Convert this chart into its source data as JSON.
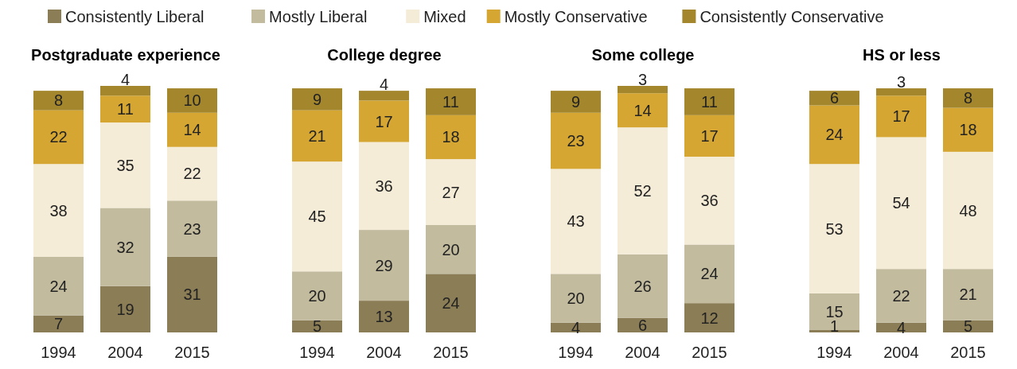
{
  "chart_data": [
    {
      "type": "bar",
      "stacked": true,
      "title": "Postgraduate experience",
      "categories": [
        "1994",
        "2004",
        "2015"
      ],
      "data_labels": true,
      "legend": "top",
      "series": [
        {
          "name": "Consistently Liberal",
          "color": "#8b7d55",
          "values": [
            7,
            19,
            31
          ]
        },
        {
          "name": "Mostly Liberal",
          "color": "#c2bb9e",
          "values": [
            24,
            32,
            23
          ]
        },
        {
          "name": "Mixed",
          "color": "#f5ecd7",
          "values": [
            38,
            35,
            22
          ]
        },
        {
          "name": "Mostly Conservative",
          "color": "#d5a631",
          "values": [
            22,
            11,
            14
          ]
        },
        {
          "name": "Consistently Conservative",
          "color": "#a4862c",
          "values": [
            8,
            4,
            10
          ]
        }
      ]
    },
    {
      "type": "bar",
      "stacked": true,
      "title": "College degree",
      "categories": [
        "1994",
        "2004",
        "2015"
      ],
      "data_labels": true,
      "series": [
        {
          "color": "#8b7d55",
          "values": [
            5,
            13,
            24
          ]
        },
        {
          "color": "#c2bb9e",
          "values": [
            20,
            29,
            20
          ]
        },
        {
          "color": "#f5ecd7",
          "values": [
            45,
            36,
            27
          ]
        },
        {
          "color": "#d5a631",
          "values": [
            21,
            17,
            18
          ]
        },
        {
          "color": "#a4862c",
          "values": [
            9,
            4,
            11
          ]
        }
      ]
    },
    {
      "type": "bar",
      "stacked": true,
      "title": "Some college",
      "categories": [
        "1994",
        "2004",
        "2015"
      ],
      "data_labels": true,
      "series": [
        {
          "color": "#8b7d55",
          "values": [
            4,
            6,
            12
          ]
        },
        {
          "color": "#c2bb9e",
          "values": [
            20,
            26,
            24
          ]
        },
        {
          "color": "#f5ecd7",
          "values": [
            43,
            52,
            36
          ]
        },
        {
          "color": "#d5a631",
          "values": [
            23,
            14,
            17
          ]
        },
        {
          "color": "#a4862c",
          "values": [
            9,
            3,
            11
          ]
        }
      ]
    },
    {
      "type": "bar",
      "stacked": true,
      "title": "HS or less",
      "categories": [
        "1994",
        "2004",
        "2015"
      ],
      "data_labels": true,
      "series": [
        {
          "color": "#8b7d55",
          "values": [
            1,
            4,
            5
          ]
        },
        {
          "color": "#c2bb9e",
          "values": [
            15,
            22,
            21
          ]
        },
        {
          "color": "#f5ecd7",
          "values": [
            53,
            54,
            48
          ]
        },
        {
          "color": "#d5a631",
          "values": [
            24,
            17,
            18
          ]
        },
        {
          "color": "#a4862c",
          "values": [
            6,
            3,
            8
          ]
        }
      ]
    }
  ]
}
